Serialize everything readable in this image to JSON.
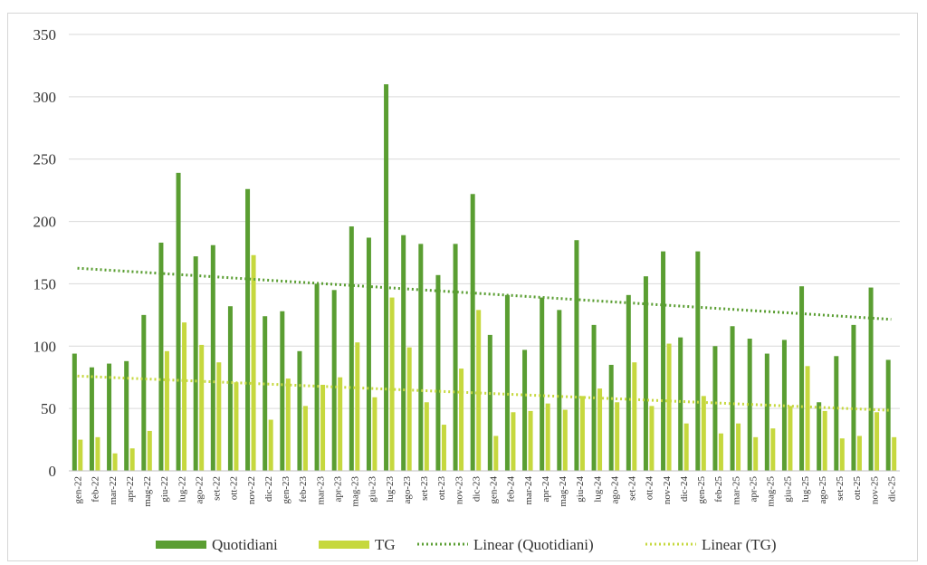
{
  "chart_data": {
    "type": "bar",
    "title": "",
    "xlabel": "",
    "ylabel": "",
    "ylim": [
      0,
      350
    ],
    "yticks": [
      0,
      50,
      100,
      150,
      200,
      250,
      300,
      350
    ],
    "grid": true,
    "legend_position": "bottom",
    "categories": [
      "gen-22",
      "feb-22",
      "mar-22",
      "apr-22",
      "mag-22",
      "giu-22",
      "lug-22",
      "ago-22",
      "set-22",
      "ott-22",
      "nov-22",
      "dic-22",
      "gen-23",
      "feb-23",
      "mar-23",
      "apr-23",
      "mag-23",
      "giu-23",
      "lug-23",
      "ago-23",
      "set-23",
      "ott-23",
      "nov-23",
      "dic-23",
      "gen-24",
      "feb-24",
      "mar-24",
      "apr-24",
      "mag-24",
      "giu-24",
      "lug-24",
      "ago-24",
      "set-24",
      "ott-24",
      "nov-24",
      "dic-24",
      "gen-25",
      "feb-25",
      "mar-25",
      "apr-25",
      "mag-25",
      "giu-25",
      "lug-25",
      "ago-25",
      "set-25",
      "ott-25",
      "nov-25",
      "dic-25"
    ],
    "series": [
      {
        "name": "Quotidiani",
        "color": "#5a9e32",
        "values": [
          94,
          83,
          86,
          88,
          125,
          183,
          239,
          172,
          181,
          132,
          226,
          124,
          128,
          96,
          150,
          145,
          196,
          187,
          310,
          189,
          182,
          157,
          182,
          222,
          109,
          141,
          97,
          139,
          129,
          185,
          117,
          85,
          141,
          156,
          176,
          107,
          176,
          100,
          116,
          106,
          94,
          105,
          148,
          55,
          92,
          117,
          147,
          89
        ]
      },
      {
        "name": "TG",
        "color": "#c6d83e",
        "values": [
          25,
          27,
          14,
          18,
          32,
          96,
          119,
          101,
          87,
          71,
          173,
          41,
          74,
          52,
          69,
          75,
          103,
          59,
          139,
          99,
          55,
          37,
          82,
          129,
          28,
          47,
          48,
          54,
          49,
          60,
          66,
          55,
          87,
          52,
          102,
          38,
          60,
          30,
          38,
          27,
          34,
          52,
          84,
          48,
          26,
          28,
          47,
          27
        ]
      }
    ],
    "trendlines": [
      {
        "name": "Linear (Quotidiani)",
        "color": "#5a9e32",
        "start": 162.5,
        "end": 121.5
      },
      {
        "name": "Linear (TG)",
        "color": "#c6d83e",
        "start": 76,
        "end": 48.5
      }
    ],
    "legend": [
      "Quotidiani",
      "TG",
      "Linear (Quotidiani)",
      "Linear (TG)"
    ]
  }
}
